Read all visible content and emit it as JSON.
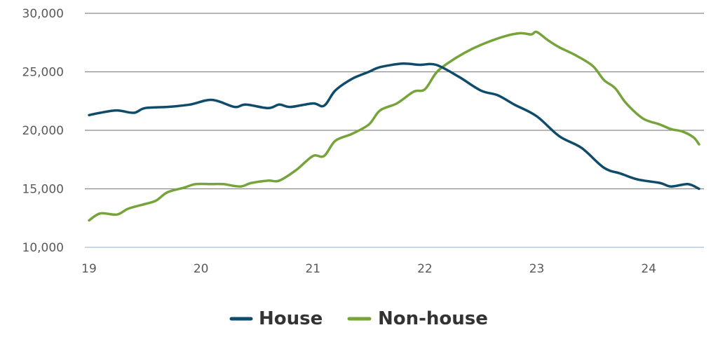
{
  "chart_data": {
    "type": "line",
    "title": "",
    "xlabel": "",
    "ylabel": "",
    "xlim": [
      19,
      24.45
    ],
    "ylim": [
      10000,
      30000
    ],
    "x_ticks": [
      {
        "value": 19,
        "label": "19"
      },
      {
        "value": 20,
        "label": "20"
      },
      {
        "value": 21,
        "label": "21"
      },
      {
        "value": 22,
        "label": "22"
      },
      {
        "value": 23,
        "label": "23"
      },
      {
        "value": 24,
        "label": "24"
      }
    ],
    "y_ticks": [
      {
        "value": 10000,
        "label": "10,000"
      },
      {
        "value": 15000,
        "label": "15,000"
      },
      {
        "value": 20000,
        "label": "20,000"
      },
      {
        "value": 25000,
        "label": "25,000"
      },
      {
        "value": 30000,
        "label": "30,000"
      }
    ],
    "grid": "horizontal",
    "legend_position": "bottom",
    "series": [
      {
        "name": "House",
        "color": "#0f4c6b",
        "x": [
          19.0,
          19.1,
          19.25,
          19.4,
          19.5,
          19.7,
          19.9,
          20.1,
          20.3,
          20.4,
          20.6,
          20.7,
          20.8,
          21.0,
          21.1,
          21.2,
          21.35,
          21.5,
          21.6,
          21.8,
          21.95,
          22.1,
          22.3,
          22.5,
          22.65,
          22.8,
          23.0,
          23.2,
          23.4,
          23.6,
          23.75,
          23.9,
          24.1,
          24.2,
          24.35,
          24.45
        ],
        "y": [
          21300,
          21500,
          21700,
          21500,
          21900,
          22000,
          22200,
          22600,
          22000,
          22200,
          21900,
          22200,
          22000,
          22300,
          22100,
          23400,
          24400,
          25000,
          25400,
          25700,
          25600,
          25600,
          24600,
          23400,
          23000,
          22200,
          21200,
          19500,
          18500,
          16800,
          16300,
          15800,
          15500,
          15200,
          15400,
          15000
        ]
      },
      {
        "name": "Non-house",
        "color": "#76a33a",
        "x": [
          19.0,
          19.1,
          19.25,
          19.35,
          19.5,
          19.6,
          19.7,
          19.85,
          19.95,
          20.1,
          20.2,
          20.35,
          20.45,
          20.6,
          20.7,
          20.85,
          21.0,
          21.1,
          21.2,
          21.35,
          21.5,
          21.6,
          21.75,
          21.9,
          22.0,
          22.1,
          22.2,
          22.35,
          22.5,
          22.7,
          22.85,
          22.95,
          23.0,
          23.1,
          23.2,
          23.35,
          23.5,
          23.6,
          23.7,
          23.8,
          23.95,
          24.1,
          24.2,
          24.3,
          24.4,
          24.45
        ],
        "y": [
          12300,
          12900,
          12800,
          13300,
          13700,
          14000,
          14700,
          15100,
          15400,
          15400,
          15400,
          15200,
          15500,
          15700,
          15700,
          16600,
          17800,
          17800,
          19100,
          19700,
          20500,
          21700,
          22300,
          23300,
          23500,
          24900,
          25700,
          26600,
          27300,
          28000,
          28300,
          28200,
          28400,
          27700,
          27100,
          26400,
          25500,
          24300,
          23600,
          22300,
          21000,
          20500,
          20100,
          19900,
          19400,
          18800
        ]
      }
    ]
  },
  "colors": {
    "grid": "#8a8a8a",
    "baseline": "#c9d6e3",
    "tick_text": "#5a5a5a",
    "legend_text": "#333333"
  }
}
